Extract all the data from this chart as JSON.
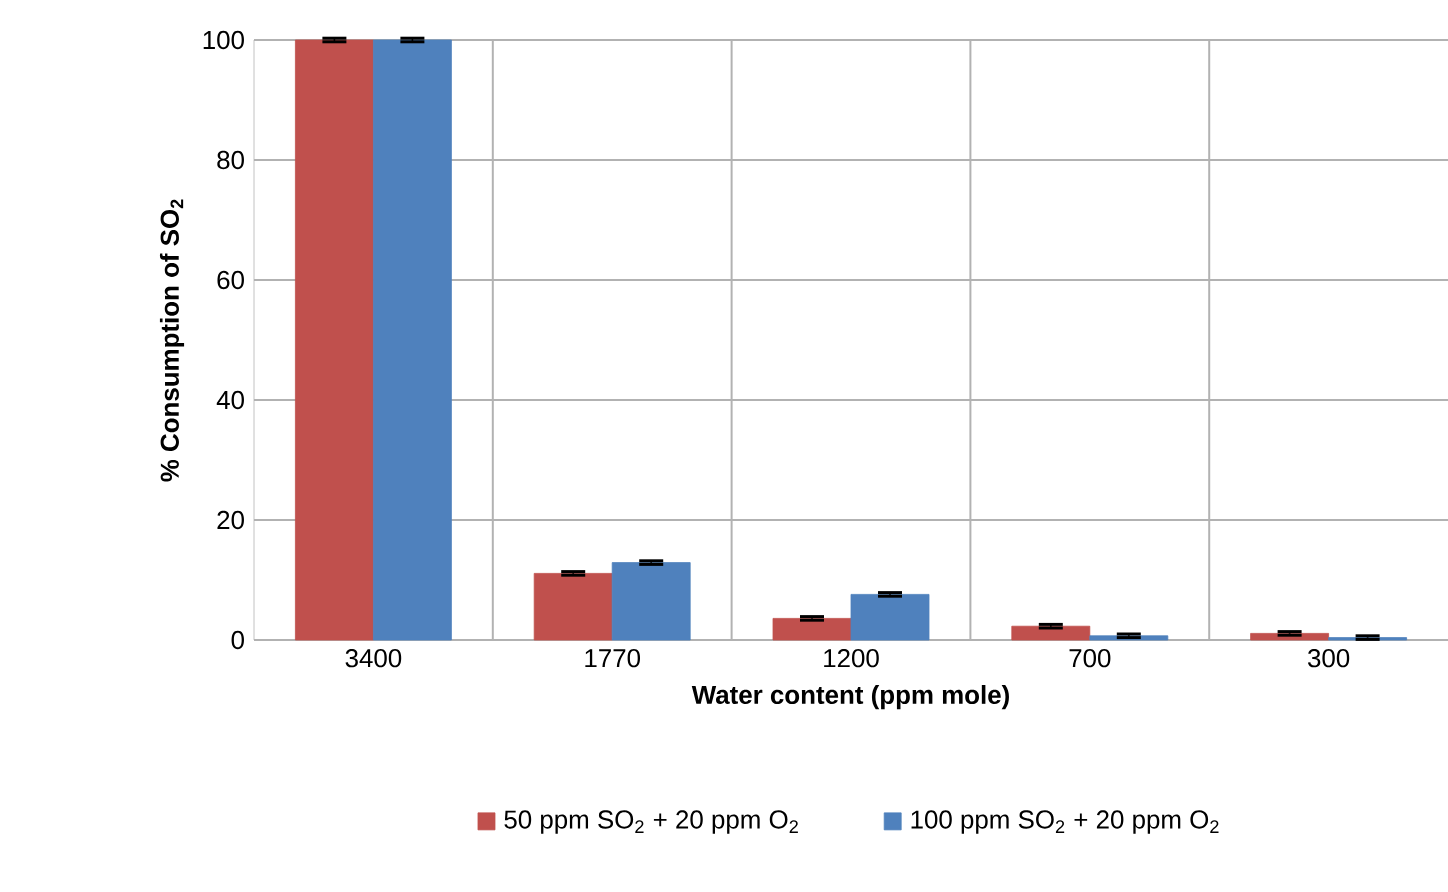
{
  "chart_data": {
    "type": "bar",
    "xlabel": "Water content (ppm mole)",
    "ylabel": "% Consumption of SO$_{2}$",
    "categories": [
      "3400",
      "1770",
      "1200",
      "700",
      "300"
    ],
    "series": [
      {
        "name": "50 ppm SO$_{2}$ + 20 ppm O$_{2}$",
        "color": "#c0504d",
        "values": [
          100,
          11.1,
          3.6,
          2.3,
          1.1
        ],
        "errors": [
          0.3,
          0.3,
          0.3,
          0.3,
          0.3
        ]
      },
      {
        "name": "100 ppm SO$_{2}$ + 20 ppm O$_{2}$",
        "color": "#4f81bd",
        "values": [
          100,
          12.9,
          7.6,
          0.7,
          0.4
        ],
        "errors": [
          0.3,
          0.3,
          0.3,
          0.3,
          0.3
        ]
      }
    ],
    "ylim": [
      0,
      100
    ],
    "yticks": [
      0,
      20,
      40,
      60,
      80,
      100
    ],
    "grid": true,
    "legend": "bottom"
  }
}
